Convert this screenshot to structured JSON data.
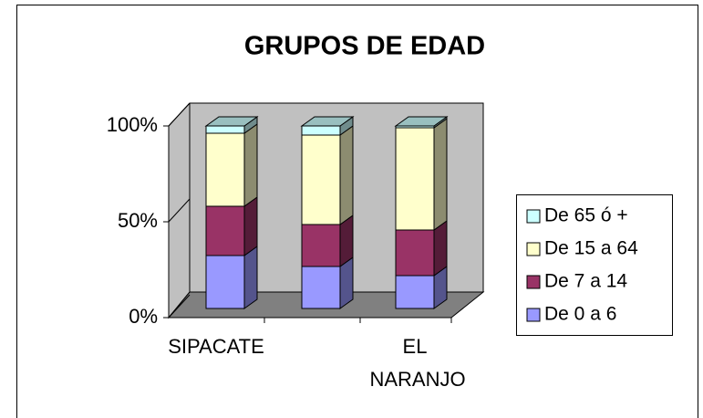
{
  "chart_data": {
    "type": "bar3d_stacked",
    "title": "GRUPOS DE EDAD",
    "categories": [
      "SIPACATE",
      null,
      "EL NARANJO"
    ],
    "series": [
      {
        "name": "De 0 a 6",
        "color": "#9999ff",
        "values": [
          29,
          23,
          18
        ]
      },
      {
        "name": "De 7 a 14",
        "color": "#993366",
        "values": [
          27,
          23,
          25
        ]
      },
      {
        "name": "De 15 a 64",
        "color": "#ffffcc",
        "values": [
          40,
          49,
          56
        ]
      },
      {
        "name": "De 65 ó +",
        "color": "#ccffff",
        "values": [
          4,
          5,
          1
        ]
      }
    ],
    "ylim": [
      0,
      100
    ],
    "yticks": [
      {
        "value": 0,
        "label": "0%"
      },
      {
        "value": 50,
        "label": "50%"
      },
      {
        "value": 100,
        "label": "100%"
      }
    ],
    "legend": "right"
  }
}
